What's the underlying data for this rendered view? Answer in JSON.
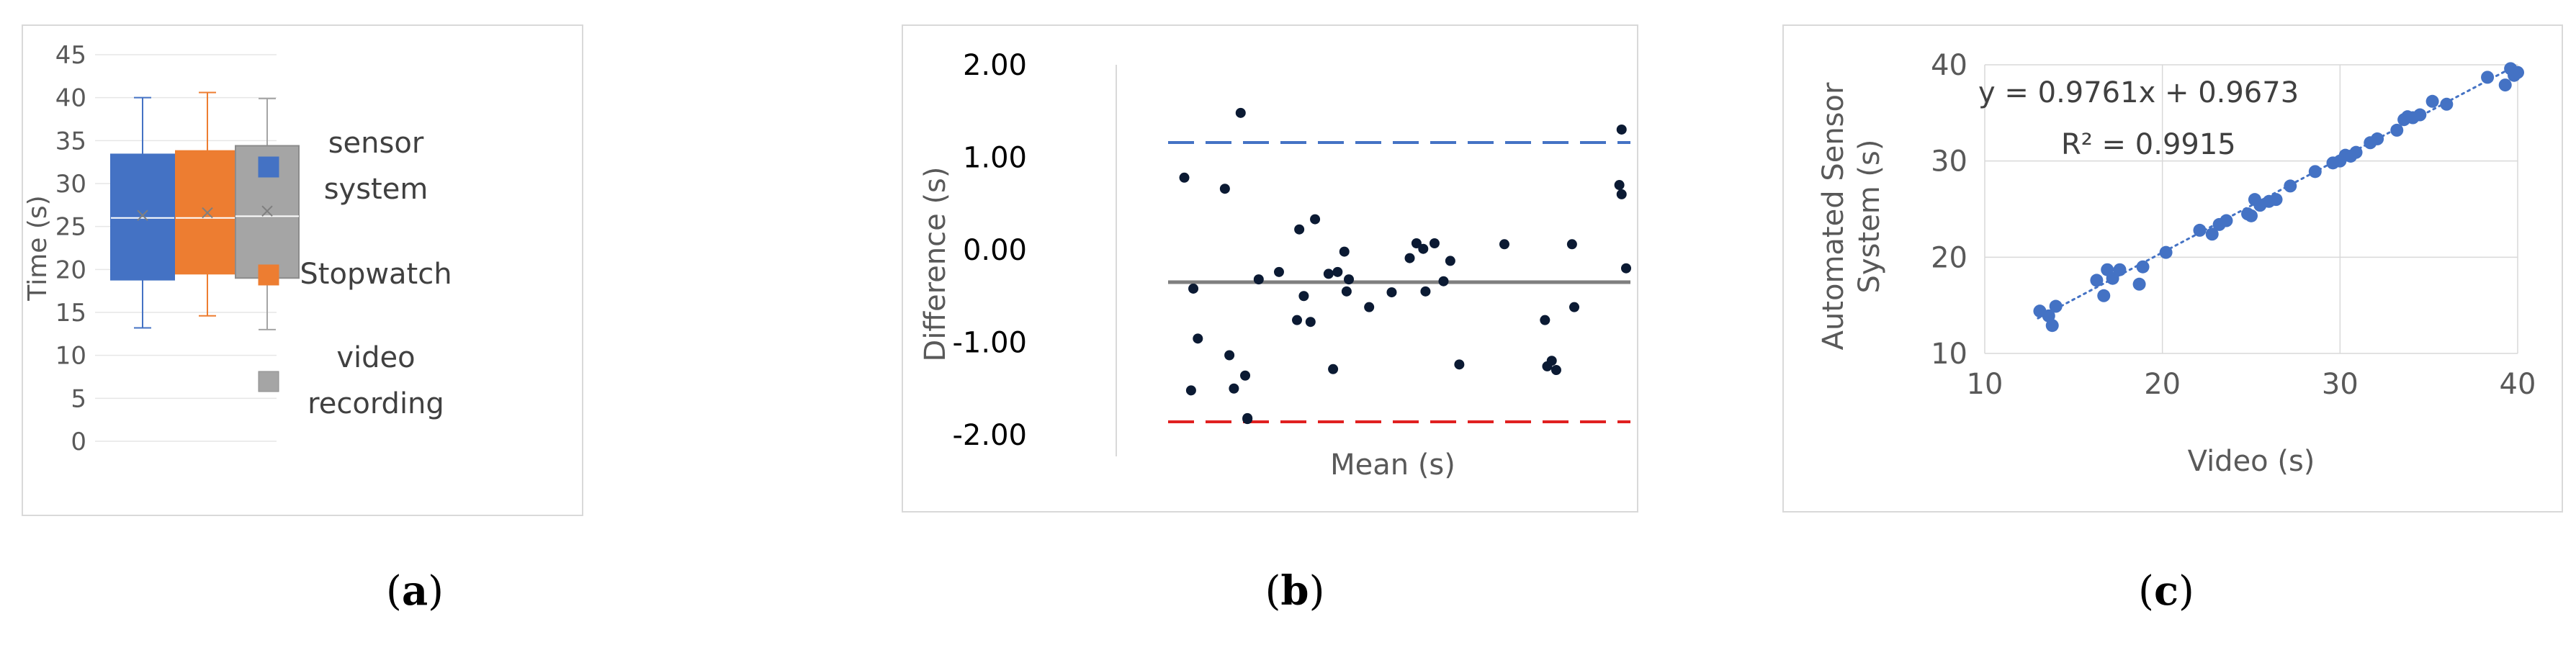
{
  "captions": {
    "a": "a",
    "b": "b",
    "c": "c"
  },
  "chart_data": [
    {
      "type": "box",
      "ylabel": "Time (s)",
      "ylim": [
        0,
        45
      ],
      "y_ticks": [
        "0",
        "5",
        "10",
        "15",
        "20",
        "25",
        "30",
        "35",
        "40",
        "45"
      ],
      "legend_position": "right",
      "series": [
        {
          "name_lines": [
            "sensor",
            "system"
          ],
          "color": "#4472c4",
          "min": 13.2,
          "q1": 18.8,
          "median": 26.0,
          "mean": 26.3,
          "q3": 33.4,
          "max": 40.0
        },
        {
          "name_lines": [
            "Stopwatch"
          ],
          "color": "#ed7d31",
          "min": 14.6,
          "q1": 19.5,
          "median": 26.0,
          "mean": 26.6,
          "q3": 33.8,
          "max": 40.6
        },
        {
          "name_lines": [
            "video",
            "recording"
          ],
          "color": "#a5a5a5",
          "min": 13.0,
          "q1": 19.0,
          "median": 26.2,
          "mean": 26.8,
          "q3": 34.4,
          "max": 39.9
        }
      ]
    },
    {
      "type": "scatter",
      "ylabel": "Difference (s)",
      "xlabel": "Mean (s)",
      "ylim": [
        -2.0,
        2.0
      ],
      "y_ticks": [
        "-2.00",
        "-1.00",
        "0.00",
        "1.00",
        "2.00"
      ],
      "y_tick_values": [
        -2,
        -1,
        0,
        1,
        2
      ],
      "mean_line": -0.35,
      "upper_limit": 1.16,
      "lower_limit": -1.86,
      "colors": {
        "mean": "#7f7f7f",
        "upper": "#4472c4",
        "lower": "#e02020",
        "points": "#0b1a33"
      },
      "x": [
        0.02,
        0.035,
        0.04,
        0.05,
        0.11,
        0.12,
        0.13,
        0.145,
        0.155,
        0.16,
        0.16,
        0.185,
        0.23,
        0.27,
        0.275,
        0.285,
        0.3,
        0.31,
        0.34,
        0.35,
        0.36,
        0.375,
        0.38,
        0.385,
        0.43,
        0.48,
        0.52,
        0.535,
        0.55,
        0.555,
        0.575,
        0.595,
        0.61,
        0.63,
        0.73,
        0.82,
        0.825,
        0.835,
        0.845,
        0.88,
        0.885,
        0.985,
        0.99,
        0.99,
        1.0
      ],
      "y": [
        0.78,
        -1.52,
        -0.42,
        -0.96,
        0.66,
        -1.14,
        -1.5,
        1.48,
        -1.36,
        -1.83,
        -1.82,
        -0.32,
        -0.24,
        -0.76,
        0.22,
        -0.5,
        -0.78,
        0.33,
        -0.26,
        -1.29,
        -0.24,
        -0.02,
        -0.45,
        -0.32,
        -0.62,
        -0.46,
        -0.09,
        0.07,
        0.01,
        -0.45,
        0.07,
        -0.34,
        -0.12,
        -1.24,
        0.06,
        -0.76,
        -1.26,
        -1.2,
        -1.3,
        0.06,
        -0.62,
        0.7,
        1.3,
        0.6,
        -0.2
      ]
    },
    {
      "type": "scatter",
      "ylabel_lines": [
        "Automated Sensor",
        "System (s)"
      ],
      "xlabel": "Video (s)",
      "xlim": [
        10,
        40
      ],
      "ylim": [
        10,
        40
      ],
      "x_ticks": [
        "10",
        "20",
        "30",
        "40"
      ],
      "x_tick_values": [
        10,
        20,
        30,
        40
      ],
      "y_ticks": [
        "10",
        "20",
        "30",
        "40"
      ],
      "y_tick_values": [
        10,
        20,
        30,
        40
      ],
      "trendline": {
        "slope": 0.9761,
        "intercept": 0.9673
      },
      "equation": "y = 0.9761x + 0.9673",
      "r_squared": "R² = 0.9915",
      "point_color": "#4472c4",
      "x": [
        13.1,
        13.6,
        13.8,
        14.0,
        16.3,
        16.7,
        16.9,
        17.2,
        17.6,
        18.7,
        18.9,
        20.2,
        22.1,
        22.8,
        23.2,
        23.6,
        24.8,
        25.0,
        25.2,
        25.5,
        26.0,
        26.4,
        27.2,
        28.6,
        29.6,
        30.0,
        30.3,
        30.6,
        30.9,
        31.7,
        32.1,
        33.2,
        33.6,
        33.8,
        34.1,
        34.5,
        35.2,
        36.0,
        38.3,
        39.3,
        39.6,
        39.8,
        40.0
      ],
      "y": [
        14.4,
        13.9,
        12.9,
        14.9,
        17.6,
        16.0,
        18.7,
        17.8,
        18.7,
        17.2,
        19.0,
        20.5,
        22.8,
        22.4,
        23.4,
        23.8,
        24.5,
        24.3,
        26.0,
        25.4,
        25.8,
        26.0,
        27.4,
        28.9,
        29.8,
        30.0,
        30.6,
        30.5,
        30.9,
        31.9,
        32.3,
        33.2,
        34.3,
        34.6,
        34.5,
        34.8,
        36.2,
        35.9,
        38.7,
        37.9,
        39.6,
        38.9,
        39.2
      ]
    }
  ]
}
